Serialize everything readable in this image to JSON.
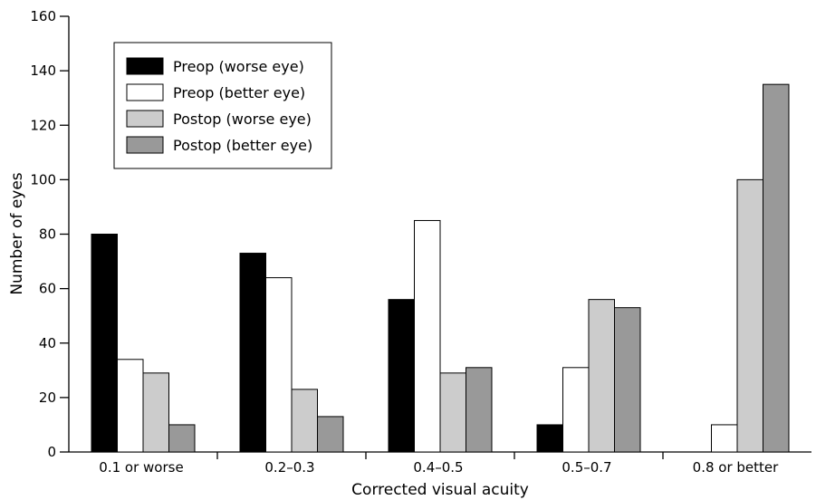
{
  "chart_data": {
    "type": "bar",
    "xlabel": "Corrected visual acuity",
    "ylabel": "Number of eyes",
    "ylim": [
      0,
      160
    ],
    "yticks": [
      0,
      20,
      40,
      60,
      80,
      100,
      120,
      140,
      160
    ],
    "grid": false,
    "legend_position": "top-left",
    "categories": [
      "0.1 or worse",
      "0.2–0.3",
      "0.4–0.5",
      "0.5–0.7",
      "0.8 or better"
    ],
    "series": [
      {
        "name": "Preop (worse eye)",
        "color": "#000000",
        "values": [
          80,
          73,
          56,
          10,
          0
        ]
      },
      {
        "name": "Preop (better eye)",
        "color": "#ffffff",
        "values": [
          34,
          64,
          85,
          31,
          10
        ]
      },
      {
        "name": "Postop (worse eye)",
        "color": "#cccccc",
        "values": [
          29,
          23,
          29,
          56,
          100
        ]
      },
      {
        "name": "Postop (better eye)",
        "color": "#999999",
        "values": [
          10,
          13,
          31,
          53,
          135
        ]
      }
    ]
  }
}
